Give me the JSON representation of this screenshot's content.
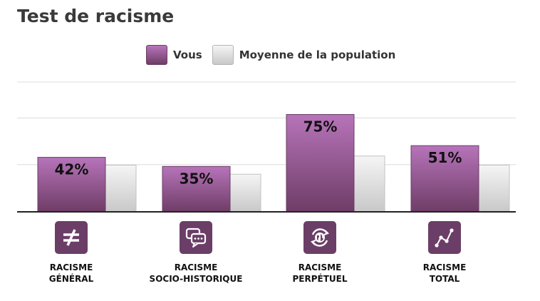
{
  "title": "Test de racisme",
  "legend": {
    "vous": "Vous",
    "population": "Moyenne de la population"
  },
  "colors": {
    "vous_top": "#b774ba",
    "vous_bottom": "#6e3d66",
    "pop_top": "#f5f5f5",
    "pop_bottom": "#c8c8c8",
    "icon_bg": "#6b3e68"
  },
  "categories": [
    {
      "line1": "RACISME",
      "line2": "GÉNÉRAL",
      "icon": "not-equal-icon"
    },
    {
      "line1": "RACISME",
      "line2": "SOCIO-HISTORIQUE",
      "icon": "chat-bubbles-icon"
    },
    {
      "line1": "RACISME",
      "line2": "PERPÉTUEL",
      "icon": "globe-cycle-icon"
    },
    {
      "line1": "RACISME",
      "line2": "TOTAL",
      "icon": "network-nodes-icon"
    }
  ],
  "chart_data": {
    "type": "bar",
    "title": "Test de racisme",
    "categories": [
      "RACISME GÉNÉRAL",
      "RACISME SOCIO-HISTORIQUE",
      "RACISME PERPÉTUEL",
      "RACISME TOTAL"
    ],
    "series": [
      {
        "name": "Vous",
        "values": [
          42,
          35,
          75,
          51
        ],
        "labels": [
          "42%",
          "35%",
          "75%",
          "51%"
        ]
      },
      {
        "name": "Moyenne de la population",
        "values": [
          36,
          29,
          43,
          36
        ]
      }
    ],
    "ylim": [
      0,
      100
    ],
    "grid": true,
    "legend_position": "top-center"
  }
}
